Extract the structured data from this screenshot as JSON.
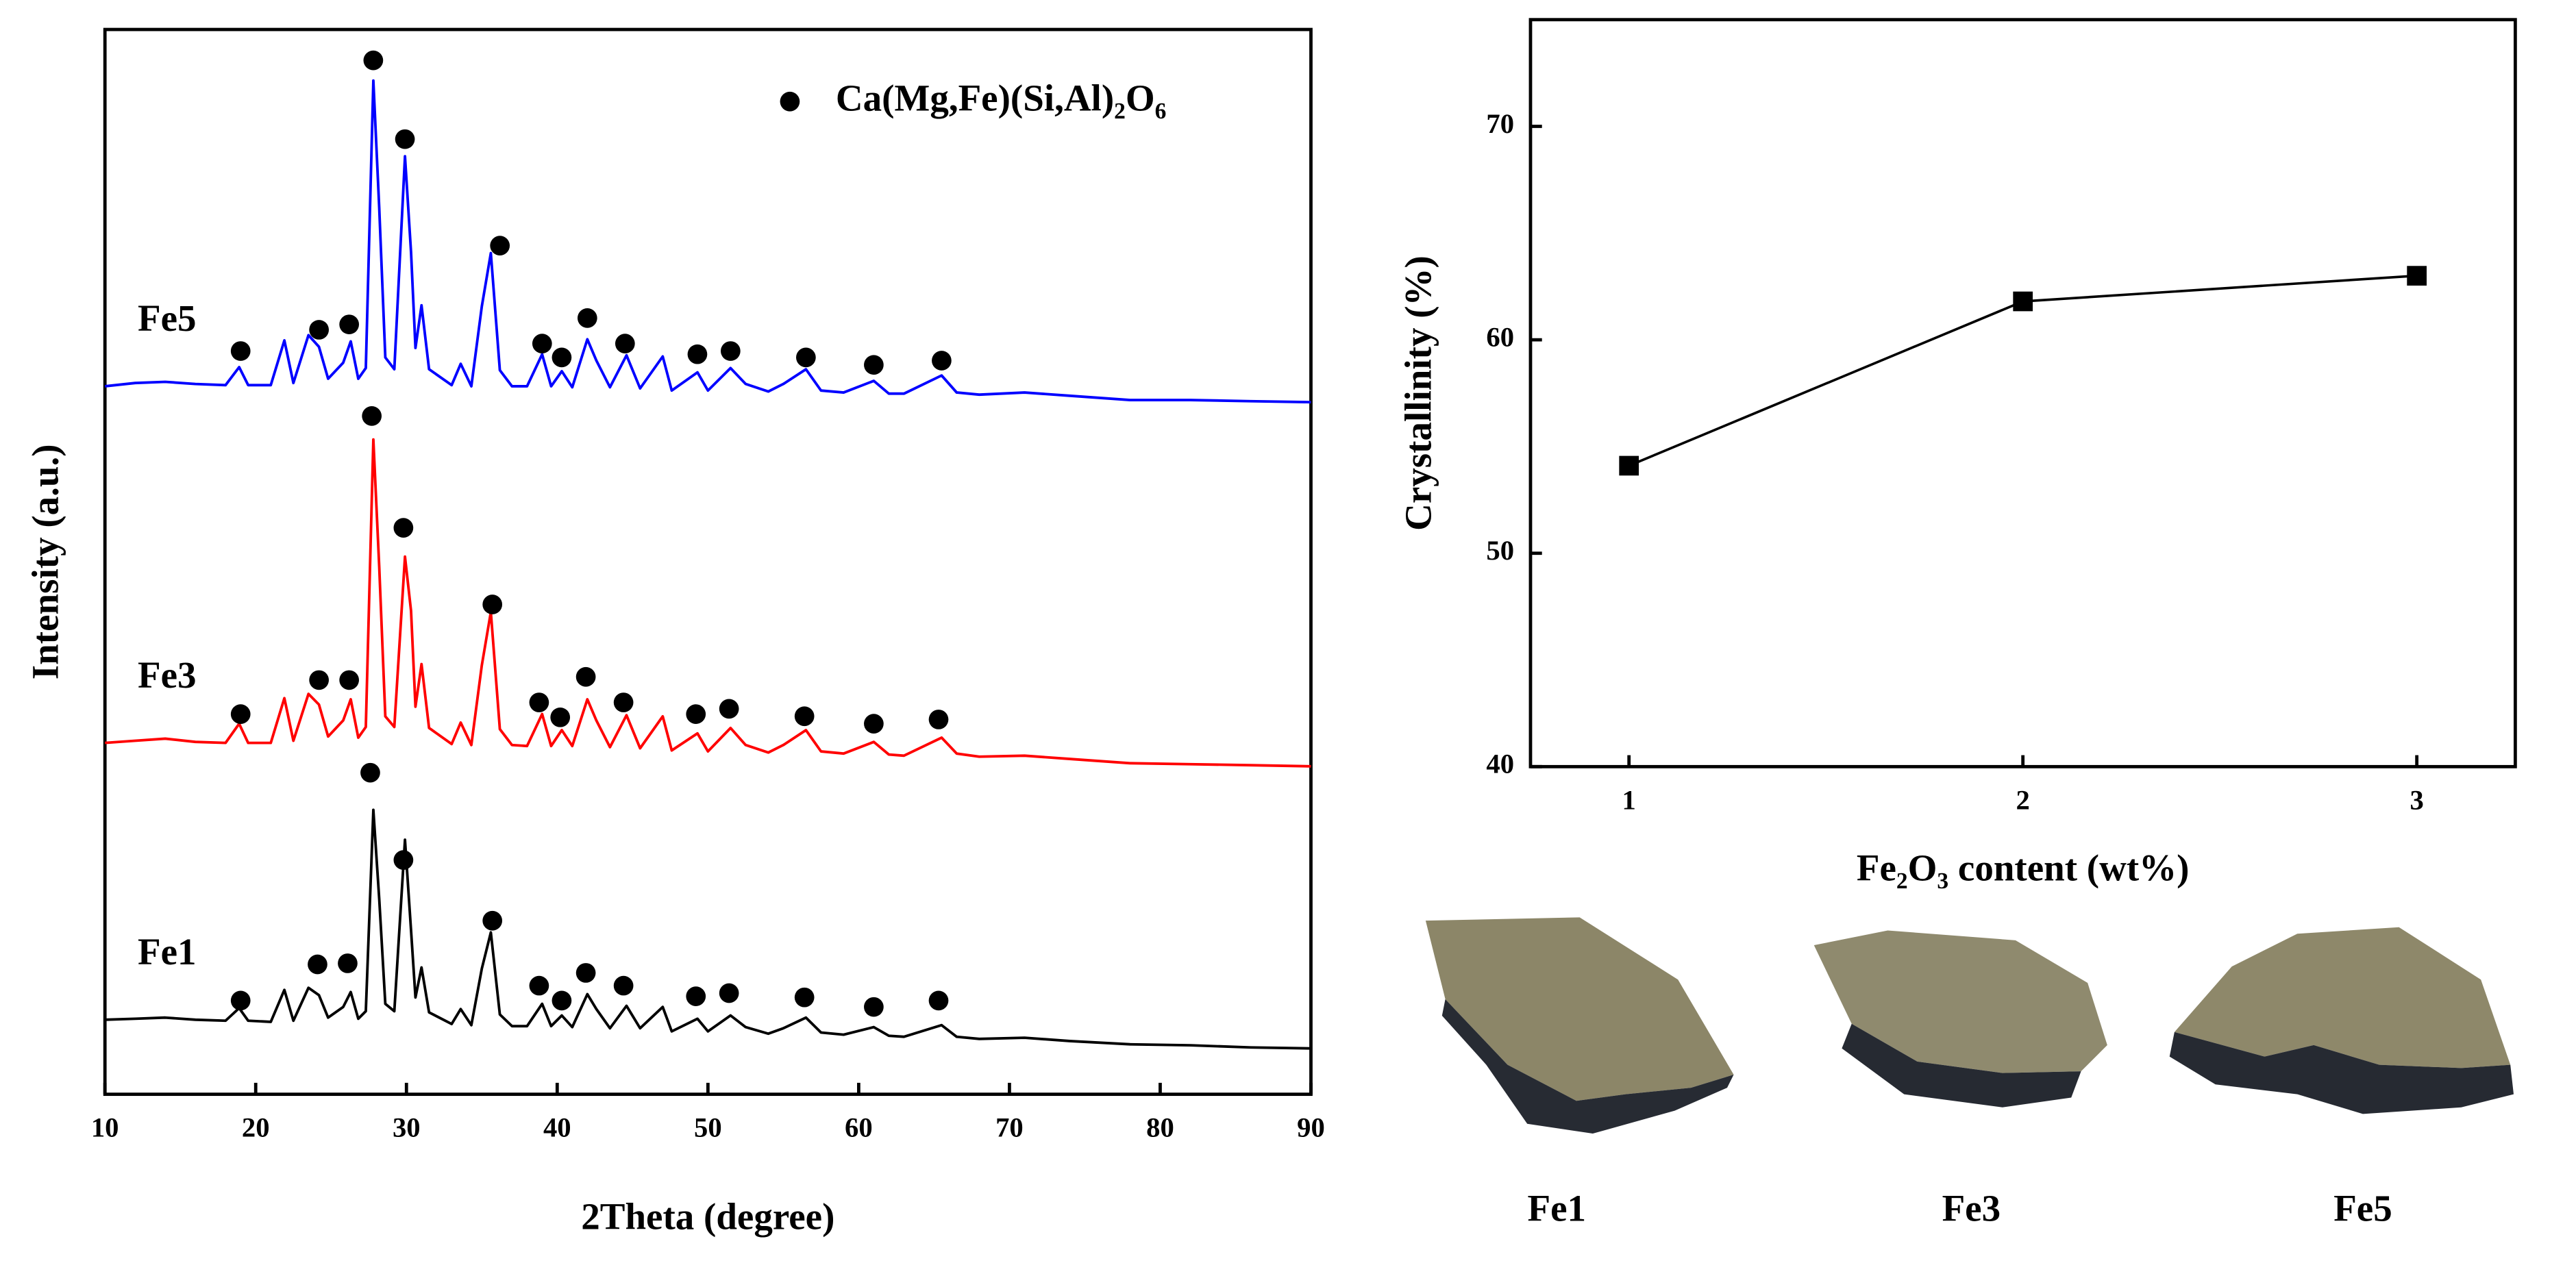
{
  "chart_data": [
    {
      "type": "line",
      "xlabel": "2Theta (degree)",
      "ylabel": "Intensity (a.u.)",
      "marker_name": [
        "Ca(Mg,Fe)(Si,Al)",
        "2",
        "O",
        "6"
      ],
      "xlim": [
        10,
        90
      ],
      "xticks": [
        10,
        20,
        30,
        40,
        50,
        60,
        70,
        80,
        90
      ],
      "ylim": [
        0,
        100
      ],
      "x": [
        10,
        12,
        14,
        16,
        18,
        18.9,
        19.5,
        21,
        21.9,
        22.5,
        23.5,
        24.2,
        24.8,
        25.8,
        26.3,
        26.8,
        27.3,
        27.8,
        28.2,
        28.6,
        29.2,
        29.9,
        30.3,
        30.6,
        31,
        31.5,
        33,
        33.6,
        34.3,
        35,
        35.6,
        36.2,
        37,
        38,
        39,
        39.6,
        40.3,
        41,
        42,
        42.6,
        43.5,
        44.6,
        45.5,
        47,
        47.6,
        49.3,
        50,
        51.5,
        52.5,
        54,
        55,
        56.5,
        57.5,
        59,
        61,
        62,
        63,
        65.5,
        66.5,
        68,
        71,
        74,
        78,
        82,
        86,
        90
      ],
      "series": [
        {
          "name": "Fe5",
          "color": "#0000ff",
          "values": [
            66.5,
            66.8,
            66.9,
            66.7,
            66.6,
            68.3,
            66.6,
            66.6,
            70.8,
            66.8,
            71.3,
            70.2,
            67.2,
            68.7,
            70.7,
            67.2,
            68.2,
            95.2,
            83.2,
            69.2,
            68.1,
            88.1,
            79.1,
            70.1,
            74.1,
            68.1,
            66.6,
            68.6,
            66.5,
            74.0,
            79.0,
            68.0,
            66.5,
            66.5,
            69.5,
            66.5,
            67.9,
            66.4,
            70.9,
            68.9,
            66.4,
            69.4,
            66.3,
            69.3,
            66.1,
            67.8,
            66.1,
            68.2,
            66.7,
            66.0,
            66.7,
            68.1,
            66.1,
            65.9,
            67.0,
            65.8,
            65.8,
            67.5,
            65.9,
            65.7,
            65.9,
            65.6,
            65.2,
            65.2,
            65.1,
            65.0
          ],
          "marker_x": [
            19,
            24.2,
            26.2,
            27.8,
            29.9,
            36.2,
            39,
            40.3,
            42,
            44.5,
            49.3,
            51.5,
            56.5,
            61,
            65.5
          ],
          "marker_values": [
            69.8,
            71.8,
            72.3,
            97.1,
            89.7,
            79.7,
            70.5,
            69.2,
            72.9,
            70.5,
            69.5,
            69.8,
            69.2,
            68.5,
            68.9
          ]
        },
        {
          "name": "Fe3",
          "color": "#ff0000",
          "values": [
            33.0,
            33.2,
            33.4,
            33.1,
            33.0,
            34.8,
            33.0,
            33.0,
            37.2,
            33.2,
            37.6,
            36.6,
            33.6,
            35.1,
            37.1,
            33.5,
            34.5,
            61.5,
            49.5,
            35.5,
            34.5,
            50.5,
            45.4,
            36.4,
            40.4,
            34.4,
            32.9,
            34.9,
            32.8,
            40.3,
            45.3,
            34.3,
            32.8,
            32.7,
            35.7,
            32.7,
            34.2,
            32.7,
            37.1,
            35.1,
            32.6,
            35.6,
            32.5,
            35.5,
            32.3,
            33.9,
            32.2,
            34.4,
            32.8,
            32.1,
            32.8,
            34.2,
            32.2,
            32.0,
            33.1,
            31.9,
            31.8,
            33.5,
            32.0,
            31.7,
            31.8,
            31.5,
            31.1,
            31.0,
            30.9,
            30.8
          ],
          "marker_x": [
            19,
            24.2,
            26.2,
            27.7,
            29.8,
            35.7,
            38.8,
            40.2,
            41.9,
            44.4,
            49.2,
            51.4,
            56.4,
            61,
            65.3
          ],
          "marker_values": [
            35.7,
            38.9,
            38.9,
            63.7,
            53.2,
            46.0,
            36.8,
            35.4,
            39.2,
            36.8,
            35.7,
            36.2,
            35.5,
            34.8,
            35.2
          ]
        },
        {
          "name": "Fe1",
          "color": "#000000",
          "values": [
            7.0,
            7.1,
            7.2,
            7.0,
            6.9,
            8.1,
            6.9,
            6.8,
            9.8,
            6.9,
            10.0,
            9.3,
            7.2,
            8.2,
            9.6,
            7.1,
            7.8,
            26.7,
            18.3,
            8.5,
            7.8,
            23.9,
            15.4,
            9.1,
            11.9,
            7.7,
            6.6,
            8.0,
            6.5,
            11.8,
            15.2,
            7.5,
            6.4,
            6.4,
            8.5,
            6.4,
            7.4,
            6.3,
            9.4,
            8.0,
            6.2,
            8.3,
            6.2,
            8.2,
            5.9,
            7.1,
            5.9,
            7.4,
            6.3,
            5.7,
            6.2,
            7.2,
            5.8,
            5.6,
            6.3,
            5.5,
            5.4,
            6.5,
            5.4,
            5.2,
            5.3,
            5.0,
            4.7,
            4.6,
            4.4,
            4.3
          ],
          "marker_x": [
            19,
            24.1,
            26.1,
            27.6,
            29.8,
            35.7,
            38.8,
            40.3,
            41.9,
            44.4,
            49.2,
            51.4,
            56.4,
            61,
            65.3
          ],
          "marker_values": [
            8.8,
            12.2,
            12.3,
            30.2,
            22.0,
            16.3,
            10.2,
            8.8,
            11.4,
            10.2,
            9.2,
            9.5,
            9.1,
            8.2,
            8.8
          ]
        }
      ]
    },
    {
      "type": "line",
      "ylabel": "Crystallinity (%)",
      "xlabel": [
        "Fe",
        "2",
        "O",
        "3",
        " content (wt%)"
      ],
      "x": [
        1,
        2,
        3
      ],
      "values": [
        54.1,
        61.8,
        63.0
      ],
      "color": "#000000",
      "xlim": [
        0.75,
        3.25
      ],
      "xticks": [
        1,
        2,
        3
      ],
      "ylim": [
        40,
        75
      ],
      "yticks": [
        40,
        50,
        60,
        70
      ],
      "samples": [
        "Fe1",
        "Fe3",
        "Fe5"
      ]
    }
  ]
}
